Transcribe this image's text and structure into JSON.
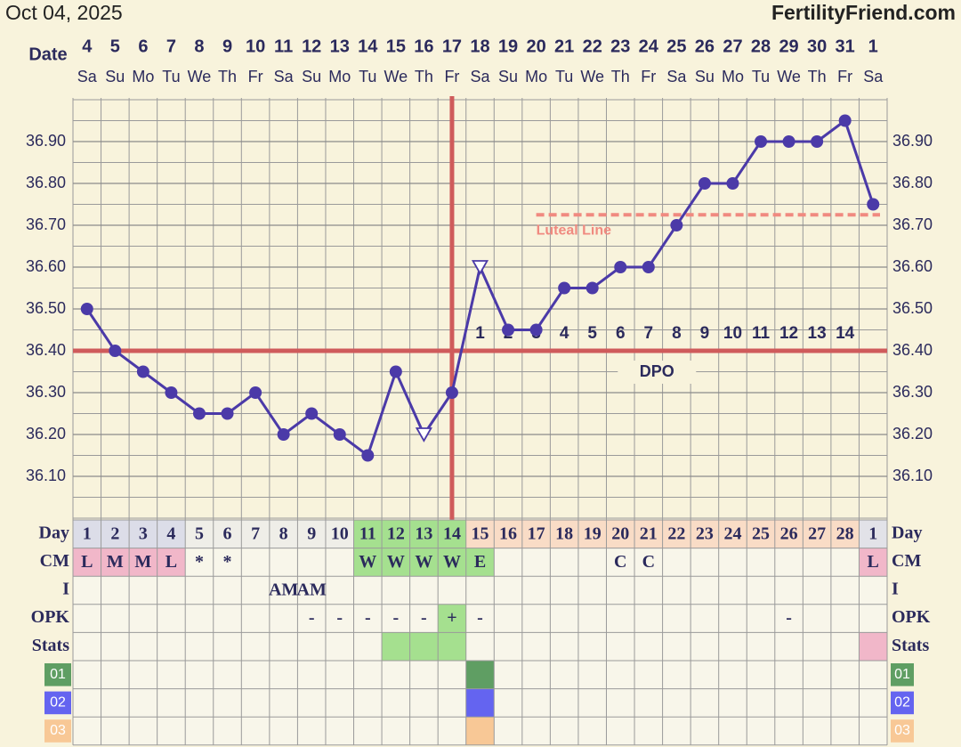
{
  "header": {
    "date": "Oct 04, 2025",
    "site": "FertilityFriend.com"
  },
  "chart_data": {
    "type": "line",
    "date_label": "Date",
    "categories": [
      "4",
      "5",
      "6",
      "7",
      "8",
      "9",
      "10",
      "11",
      "12",
      "13",
      "14",
      "15",
      "16",
      "17",
      "18",
      "19",
      "20",
      "21",
      "22",
      "23",
      "24",
      "25",
      "26",
      "27",
      "28",
      "29",
      "30",
      "31",
      "1"
    ],
    "weekdays": [
      "Sa",
      "Su",
      "Mo",
      "Tu",
      "We",
      "Th",
      "Fr",
      "Sa",
      "Su",
      "Mo",
      "Tu",
      "We",
      "Th",
      "Fr",
      "Sa",
      "Su",
      "Mo",
      "Tu",
      "We",
      "Th",
      "Fr",
      "Sa",
      "Su",
      "Mo",
      "Tu",
      "We",
      "Th",
      "Fr",
      "Sa"
    ],
    "values": [
      36.5,
      36.4,
      36.35,
      36.3,
      36.25,
      36.25,
      36.3,
      36.2,
      36.25,
      36.2,
      36.15,
      36.35,
      36.2,
      36.3,
      36.6,
      36.45,
      36.45,
      36.55,
      36.55,
      36.6,
      36.6,
      36.7,
      36.8,
      36.8,
      36.9,
      36.9,
      36.9,
      36.95,
      36.75
    ],
    "markers": [
      "circle",
      "circle",
      "circle",
      "circle",
      "circle",
      "circle",
      "circle",
      "circle",
      "circle",
      "circle",
      "circle",
      "circle",
      "triangle",
      "circle",
      "triangle",
      "circle",
      "circle",
      "circle",
      "circle",
      "circle",
      "circle",
      "circle",
      "circle",
      "circle",
      "circle",
      "circle",
      "circle",
      "circle",
      "circle"
    ],
    "color": "#4b3aa8",
    "ylim": [
      36.0,
      37.0
    ],
    "yticks": [
      {
        "value": 36.1,
        "label": "36.10"
      },
      {
        "value": 36.2,
        "label": "36.20"
      },
      {
        "value": 36.3,
        "label": "36.30"
      },
      {
        "value": 36.4,
        "label": "36.40"
      },
      {
        "value": 36.5,
        "label": "36.50"
      },
      {
        "value": 36.6,
        "label": "36.60"
      },
      {
        "value": 36.7,
        "label": "36.70"
      },
      {
        "value": 36.8,
        "label": "36.80"
      },
      {
        "value": 36.9,
        "label": "36.90"
      }
    ],
    "grid": true,
    "coverline": {
      "value": 36.4,
      "color": "#cf5b5b"
    },
    "ovulation": "17",
    "luteal_line": {
      "label": "Luteal Line",
      "value": 36.725,
      "from": "20",
      "color": "#f08a80"
    },
    "dpo": {
      "label": "DPO",
      "values": [
        null,
        null,
        null,
        null,
        null,
        null,
        null,
        null,
        null,
        null,
        null,
        null,
        null,
        null,
        1,
        2,
        3,
        4,
        5,
        6,
        7,
        8,
        9,
        10,
        11,
        12,
        13,
        14,
        null
      ]
    }
  },
  "table": {
    "rows": [
      {
        "label": "Day",
        "cells": [
          1,
          2,
          3,
          4,
          5,
          6,
          7,
          8,
          9,
          10,
          11,
          12,
          13,
          14,
          15,
          16,
          17,
          18,
          19,
          20,
          21,
          22,
          23,
          24,
          25,
          26,
          27,
          28,
          1
        ],
        "colors": [
          "#dcdde8",
          "#dcdde8",
          "#dcdde8",
          "#dcdde8",
          "#efeee8",
          "#efeee8",
          "#efeee8",
          "#efeee8",
          "#efeee8",
          "#efeee8",
          "#a5e08f",
          "#a5e08f",
          "#a5e08f",
          "#a5e08f",
          "#f9dcc6",
          "#f9dcc6",
          "#f9dcc6",
          "#f9dcc6",
          "#f9dcc6",
          "#f9dcc6",
          "#f9dcc6",
          "#f9dcc6",
          "#f9dcc6",
          "#f9dcc6",
          "#f9dcc6",
          "#f9dcc6",
          "#f9dcc6",
          "#f9dcc6",
          "#e2e2e8"
        ]
      },
      {
        "label": "CM",
        "cells": [
          "L",
          "M",
          "M",
          "L",
          "*",
          "*",
          null,
          null,
          null,
          null,
          "W",
          "W",
          "W",
          "W",
          "E",
          null,
          null,
          null,
          null,
          "C",
          "C",
          null,
          null,
          null,
          null,
          null,
          null,
          null,
          "L"
        ],
        "colors": [
          "#f1b7c9",
          "#f1b7c9",
          "#f1b7c9",
          "#f1b7c9",
          null,
          null,
          null,
          null,
          null,
          null,
          "#a5e08f",
          "#a5e08f",
          "#a5e08f",
          "#a5e08f",
          "#a5e08f",
          null,
          null,
          null,
          null,
          null,
          null,
          null,
          null,
          null,
          null,
          null,
          null,
          null,
          "#f1b7c9"
        ]
      },
      {
        "label": "I",
        "cells": [
          null,
          null,
          null,
          null,
          null,
          null,
          null,
          "AM",
          "AM",
          null,
          null,
          null,
          null,
          null,
          null,
          null,
          null,
          null,
          null,
          null,
          null,
          null,
          null,
          null,
          null,
          null,
          null,
          null,
          null
        ]
      },
      {
        "label": "OPK",
        "cells": [
          null,
          null,
          null,
          null,
          null,
          null,
          null,
          null,
          "-",
          "-",
          "-",
          "-",
          "-",
          "+",
          "-",
          null,
          null,
          null,
          null,
          null,
          null,
          null,
          null,
          null,
          null,
          "-",
          null,
          null,
          null
        ],
        "colors": [
          null,
          null,
          null,
          null,
          null,
          null,
          null,
          null,
          null,
          null,
          null,
          null,
          null,
          "#a5e08f",
          null,
          null,
          null,
          null,
          null,
          null,
          null,
          null,
          null,
          null,
          null,
          null,
          null,
          null,
          null
        ]
      },
      {
        "label": "Stats",
        "cells": [],
        "colors": [
          null,
          null,
          null,
          null,
          null,
          null,
          null,
          null,
          null,
          null,
          null,
          "#a5e08f",
          "#a5e08f",
          "#a5e08f",
          null,
          null,
          null,
          null,
          null,
          null,
          null,
          null,
          null,
          null,
          null,
          null,
          null,
          null,
          "#f1b7c9"
        ]
      },
      {
        "label": "01",
        "label_color": "#5f9e63",
        "cells": [],
        "colors": [
          null,
          null,
          null,
          null,
          null,
          null,
          null,
          null,
          null,
          null,
          null,
          null,
          null,
          null,
          "#5f9e63"
        ]
      },
      {
        "label": "02",
        "label_color": "#6464f0",
        "cells": [],
        "colors": [
          null,
          null,
          null,
          null,
          null,
          null,
          null,
          null,
          null,
          null,
          null,
          null,
          null,
          null,
          "#6464f0"
        ]
      },
      {
        "label": "03",
        "label_color": "#f8c896",
        "cells": [],
        "colors": [
          null,
          null,
          null,
          null,
          null,
          null,
          null,
          null,
          null,
          null,
          null,
          null,
          null,
          null,
          "#f8c896"
        ]
      }
    ]
  }
}
